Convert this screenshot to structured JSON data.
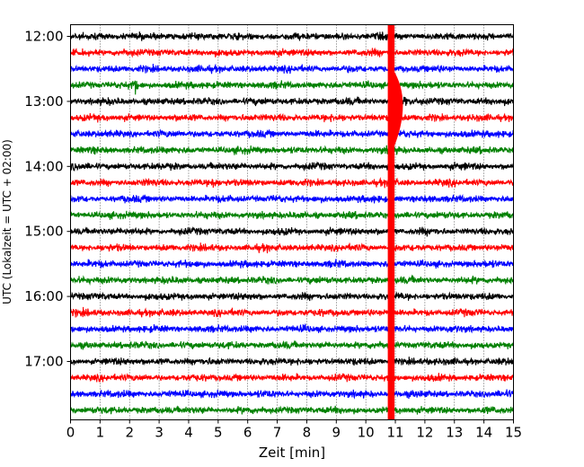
{
  "chart_data": {
    "type": "line",
    "title": "",
    "xlabel": "Zeit  [min]",
    "ylabel": "UTC (Lokalzeit = UTC + 02:00)",
    "xlim": [
      0,
      15
    ],
    "x_ticks": [
      "0",
      "1",
      "2",
      "3",
      "4",
      "5",
      "6",
      "7",
      "8",
      "9",
      "10",
      "11",
      "12",
      "13",
      "14",
      "15"
    ],
    "y_tick_labels": [
      "12:00",
      "13:00",
      "14:00",
      "15:00",
      "16:00",
      "17:00"
    ],
    "trace_start_times": [
      "12:00",
      "12:15",
      "12:30",
      "12:45",
      "13:00",
      "13:15",
      "13:30",
      "13:45",
      "14:00",
      "14:15",
      "14:30",
      "14:45",
      "15:00",
      "15:15",
      "15:30",
      "15:45",
      "16:00",
      "16:15",
      "16:30",
      "16:45",
      "17:00",
      "17:15",
      "17:30",
      "17:45"
    ],
    "trace_colors": [
      "#000000",
      "#ff0000",
      "#0000ff",
      "#008000"
    ],
    "grid": "vertical dotted at each minute",
    "event_time_min": 10.85,
    "event_peak_start": "13:00",
    "event_coda_end_min": 11.8,
    "spikes": [
      {
        "trace": "12:45",
        "time_min": 2.2
      },
      {
        "trace": "14:15",
        "time_min": 4.85
      }
    ]
  }
}
